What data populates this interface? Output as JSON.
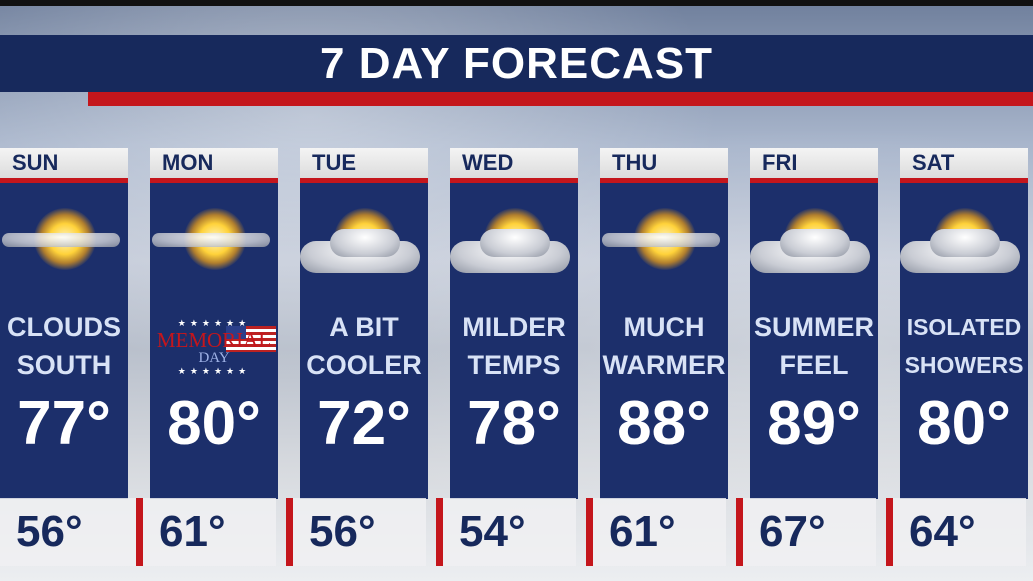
{
  "title": "7 DAY FORECAST",
  "colors": {
    "navy": "#17295c",
    "panel": "#1c2f6b",
    "red": "#c4161c"
  },
  "days": [
    {
      "day": "SUN",
      "cond1": "CLOUDS",
      "cond2": "SOUTH",
      "high": "77°",
      "low": "56°",
      "icon": "sun-thin-cloud-icon"
    },
    {
      "day": "MON",
      "cond1": "",
      "cond2": "",
      "high": "80°",
      "low": "61°",
      "icon": "sun-thin-cloud-icon",
      "memorial": {
        "line1": "MEMORIAL",
        "line2": "DAY",
        "stars": "★★★★★★"
      }
    },
    {
      "day": "TUE",
      "cond1": "A BIT",
      "cond2": "COOLER",
      "high": "72°",
      "low": "56°",
      "icon": "partly-cloudy-icon"
    },
    {
      "day": "WED",
      "cond1": "MILDER",
      "cond2": "TEMPS",
      "high": "78°",
      "low": "54°",
      "icon": "partly-cloudy-icon"
    },
    {
      "day": "THU",
      "cond1": "MUCH",
      "cond2": "WARMER",
      "high": "88°",
      "low": "61°",
      "icon": "sun-thin-cloud-icon"
    },
    {
      "day": "FRI",
      "cond1": "SUMMER",
      "cond2": "FEEL",
      "high": "89°",
      "low": "67°",
      "icon": "partly-cloudy-icon"
    },
    {
      "day": "SAT",
      "cond1": "ISOLATED",
      "cond2": "SHOWERS",
      "high": "80°",
      "low": "64°",
      "icon": "partly-cloudy-icon"
    }
  ]
}
